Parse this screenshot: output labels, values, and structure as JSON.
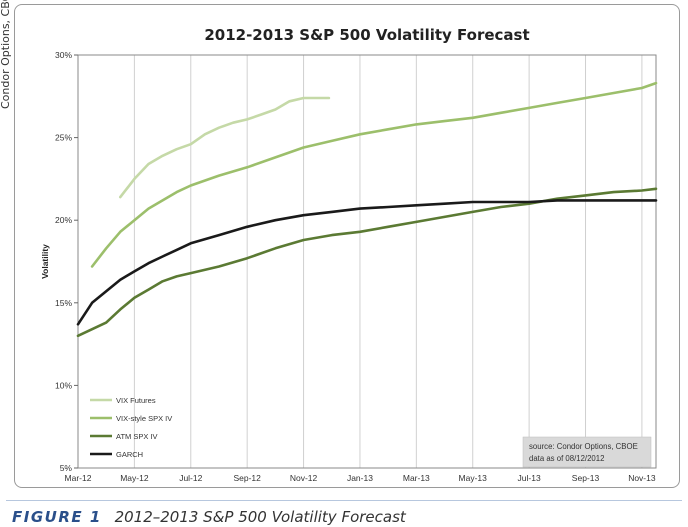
{
  "side_credit": "Condor Options, CBOE",
  "caption": {
    "figure": "FIGURE 1",
    "text": "2012–2013 S&P 500 Volatility Forecast"
  },
  "source_note": {
    "line1": "source: Condor Options, CBOE",
    "line2": "data as of 08/12/2012"
  },
  "chart_data": {
    "type": "line",
    "title": "2012-2013 S&P 500 Volatility Forecast",
    "xlabel": "",
    "ylabel": "Volatility",
    "x_tick_labels": [
      "Mar-12",
      "May-12",
      "Jul-12",
      "Sep-12",
      "Nov-12",
      "Jan-13",
      "Mar-13",
      "May-13",
      "Jul-13",
      "Sep-13",
      "Nov-13"
    ],
    "x_range_months": [
      0,
      20.5
    ],
    "y_tick_labels": [
      "5%",
      "10%",
      "15%",
      "20%",
      "25%",
      "30%"
    ],
    "ylim": [
      0.05,
      0.3
    ],
    "grid": "vertical",
    "legend_position": "bottom-left",
    "series": [
      {
        "name": "VIX Futures",
        "color": "#c5d9a7",
        "x": [
          1.5,
          2.0,
          2.5,
          3.0,
          3.5,
          4.0,
          4.5,
          5.0,
          5.5,
          6.0,
          6.5,
          7.0,
          7.5,
          8.0,
          8.5,
          8.9
        ],
        "y": [
          0.214,
          0.225,
          0.234,
          0.239,
          0.243,
          0.246,
          0.252,
          0.256,
          0.259,
          0.261,
          0.264,
          0.267,
          0.272,
          0.274,
          0.274,
          0.274
        ]
      },
      {
        "name": "VIX-style SPX IV",
        "color": "#9cbf6b",
        "x": [
          0.5,
          1,
          1.5,
          2,
          2.5,
          3,
          3.5,
          4,
          5,
          6,
          7,
          8,
          9,
          10,
          11,
          12,
          13,
          14,
          15,
          16,
          17,
          18,
          19,
          20,
          20.5
        ],
        "y": [
          0.172,
          0.183,
          0.193,
          0.2,
          0.207,
          0.212,
          0.217,
          0.221,
          0.227,
          0.232,
          0.238,
          0.244,
          0.248,
          0.252,
          0.255,
          0.258,
          0.26,
          0.262,
          0.265,
          0.268,
          0.271,
          0.274,
          0.277,
          0.28,
          0.283
        ]
      },
      {
        "name": "ATM SPX IV",
        "color": "#5b7a33",
        "x": [
          0,
          0.5,
          1,
          1.5,
          2,
          2.5,
          3,
          3.5,
          4,
          5,
          6,
          7,
          8,
          9,
          10,
          11,
          12,
          13,
          14,
          15,
          16,
          17,
          18,
          19,
          20,
          20.5
        ],
        "y": [
          0.13,
          0.134,
          0.138,
          0.146,
          0.153,
          0.158,
          0.163,
          0.166,
          0.168,
          0.172,
          0.177,
          0.183,
          0.188,
          0.191,
          0.193,
          0.196,
          0.199,
          0.202,
          0.205,
          0.208,
          0.21,
          0.213,
          0.215,
          0.217,
          0.218,
          0.219
        ]
      },
      {
        "name": "GARCH",
        "color": "#1a1a1a",
        "x": [
          0,
          0.5,
          1,
          1.5,
          2,
          2.5,
          3,
          3.5,
          4,
          5,
          6,
          7,
          8,
          9,
          10,
          11,
          12,
          13,
          14,
          15,
          16,
          17,
          18,
          19,
          20,
          20.5
        ],
        "y": [
          0.137,
          0.15,
          0.157,
          0.164,
          0.169,
          0.174,
          0.178,
          0.182,
          0.186,
          0.191,
          0.196,
          0.2,
          0.203,
          0.205,
          0.207,
          0.208,
          0.209,
          0.21,
          0.211,
          0.211,
          0.211,
          0.212,
          0.212,
          0.212,
          0.212,
          0.212
        ]
      }
    ]
  }
}
